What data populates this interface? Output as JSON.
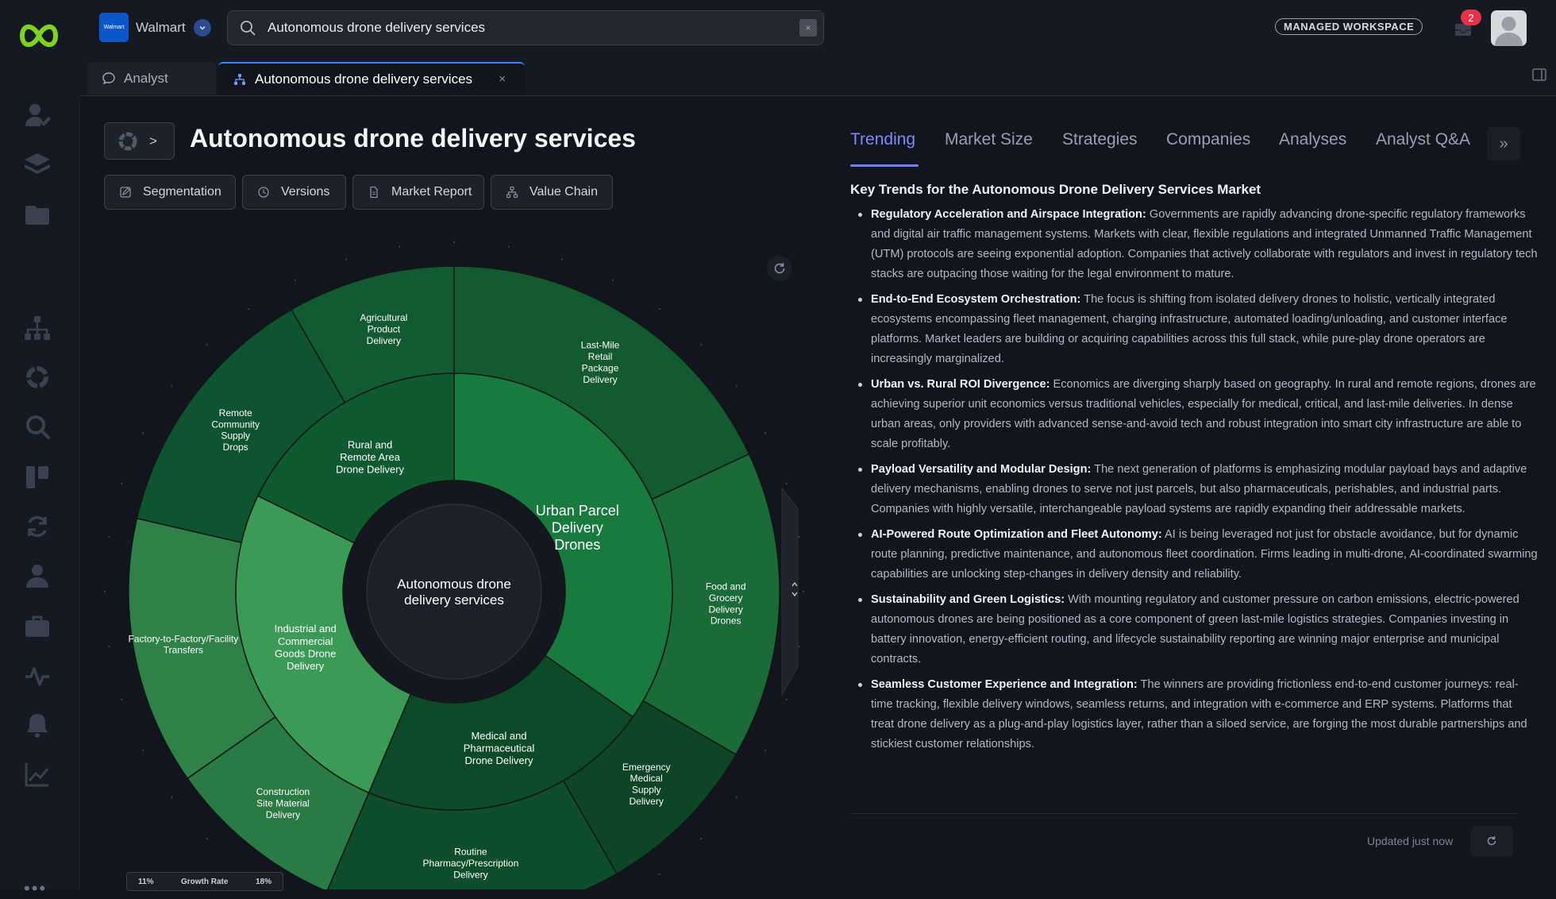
{
  "org": {
    "name": "Walmart",
    "logo_text": "Walmart"
  },
  "search": {
    "value": "Autonomous drone delivery services",
    "clear": "×"
  },
  "workspace_badge": "MANAGED WORKSPACE",
  "notifications": {
    "count": "2"
  },
  "tabs": [
    {
      "label": "Analyst",
      "icon": "chat-icon"
    },
    {
      "label": "Autonomous drone delivery services",
      "icon": "hierarchy-icon",
      "close": "×"
    }
  ],
  "page": {
    "title": "Autonomous drone delivery services",
    "breadcrumb_sep": ">"
  },
  "toolbar": {
    "segmentation": "Segmentation",
    "versions": "Versions",
    "market_report": "Market Report",
    "value_chain": "Value Chain"
  },
  "sunburst": {
    "center": [
      "Autonomous drone",
      "delivery services"
    ],
    "segments": [
      {
        "label": [
          "Urban Parcel",
          "Delivery",
          "Drones"
        ],
        "color": "#197a3f"
      },
      {
        "label": [
          "Medical and",
          "Pharmaceutical",
          "Drone Delivery"
        ],
        "color": "#0d4a28"
      },
      {
        "label": [
          "Industrial and",
          "Commercial",
          "Goods Drone",
          "Delivery"
        ],
        "color": "#3b9a56"
      },
      {
        "label": [
          "Rural and",
          "Remote Area",
          "Drone Delivery"
        ],
        "color": "#0f5a30"
      }
    ],
    "subsegments": [
      {
        "label": [
          "Last-Mile",
          "Retail",
          "Package",
          "Delivery"
        ],
        "color": "#145a30"
      },
      {
        "label": [
          "Food and",
          "Grocery",
          "Delivery",
          "Drones"
        ],
        "color": "#1a6b38"
      },
      {
        "label": [
          "Emergency",
          "Medical",
          "Supply",
          "Delivery"
        ],
        "color": "#0d4526"
      },
      {
        "label": [
          "Routine",
          "Pharmacy/Prescription",
          "Delivery"
        ],
        "color": "#0f4e2b"
      },
      {
        "label": [
          "Construction",
          "Site Material",
          "Delivery"
        ],
        "color": "#2a7a45"
      },
      {
        "label": [
          "Factory-to-Factory/Facility",
          "Transfers"
        ],
        "color": "#2f8049"
      },
      {
        "label": [
          "Remote",
          "Community",
          "Supply",
          "Drops"
        ],
        "color": "#0f5430"
      },
      {
        "label": [
          "Agricultural",
          "Product",
          "Delivery"
        ],
        "color": "#125a32"
      }
    ],
    "legend": {
      "min": "11%",
      "label": "Growth Rate",
      "max": "18%"
    }
  },
  "right_tabs": [
    "Trending",
    "Market Size",
    "Strategies",
    "Companies",
    "Analyses",
    "Analyst Q&A"
  ],
  "right_tabs_more": "»",
  "trends_title": "Key Trends for the Autonomous Drone Delivery Services Market",
  "trends": [
    {
      "title": "Regulatory Acceleration and Airspace Integration:",
      "text": " Governments are rapidly advancing drone-specific regulatory frameworks and digital air traffic management systems. Markets with clear, flexible regulations and integrated Unmanned Traffic Management (UTM) protocols are seeing exponential adoption. Companies that actively collaborate with regulators and invest in regulatory tech stacks are outpacing those waiting for the legal environment to mature."
    },
    {
      "title": "End-to-End Ecosystem Orchestration:",
      "text": " The focus is shifting from isolated delivery drones to holistic, vertically integrated ecosystems encompassing fleet management, charging infrastructure, automated loading/unloading, and customer interface platforms. Market leaders are building or acquiring capabilities across this full stack, while pure-play drone operators are increasingly marginalized."
    },
    {
      "title": "Urban vs. Rural ROI Divergence:",
      "text": " Economics are diverging sharply based on geography. In rural and remote regions, drones are achieving superior unit economics versus traditional vehicles, especially for medical, critical, and last-mile deliveries. In dense urban areas, only providers with advanced sense-and-avoid tech and robust integration into smart city infrastructure are able to scale profitably."
    },
    {
      "title": "Payload Versatility and Modular Design:",
      "text": " The next generation of platforms is emphasizing modular payload bays and adaptive delivery mechanisms, enabling drones to serve not just parcels, but also pharmaceuticals, perishables, and industrial parts. Companies with highly versatile, interchangeable payload systems are rapidly expanding their addressable markets."
    },
    {
      "title": "AI-Powered Route Optimization and Fleet Autonomy:",
      "text": " AI is being leveraged not just for obstacle avoidance, but for dynamic route planning, predictive maintenance, and autonomous fleet coordination. Firms leading in multi-drone, AI-coordinated swarming capabilities are unlocking step-changes in delivery density and reliability."
    },
    {
      "title": "Sustainability and Green Logistics:",
      "text": " With mounting regulatory and customer pressure on carbon emissions, electric-powered autonomous drones are being positioned as a core component of green last-mile logistics strategies. Companies investing in battery innovation, energy-efficient routing, and lifecycle sustainability reporting are winning major enterprise and municipal contracts."
    },
    {
      "title": "Seamless Customer Experience and Integration:",
      "text": " The winners are providing frictionless end-to-end customer journeys: real-time tracking, flexible delivery windows, seamless returns, and integration with e-commerce and ERP systems. Platforms that treat drone delivery as a plug-and-play logistics layer, rather than a siloed service, are forging the most durable partnerships and stickiest customer relationships."
    }
  ],
  "updated": "Updated just now"
}
